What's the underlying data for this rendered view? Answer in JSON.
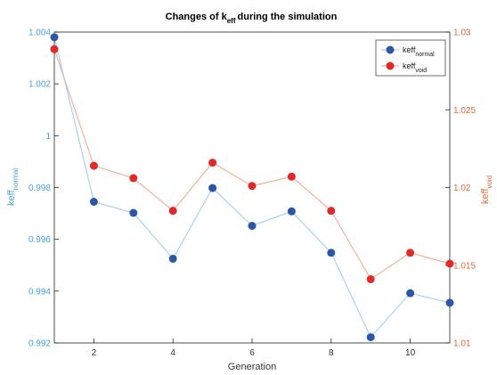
{
  "chart_data": {
    "type": "line",
    "title": "Changes of k",
    "title_sub": "eff",
    "title_rest": "during the simulation",
    "xlabel": "Generation",
    "xlim": [
      1,
      11
    ],
    "x_ticks": [
      2,
      4,
      6,
      8,
      10
    ],
    "grid": false,
    "legend_position": "top-right",
    "x": [
      1,
      2,
      3,
      4,
      5,
      6,
      7,
      8,
      9,
      10,
      11
    ],
    "left_axis": {
      "label": "keff",
      "label_sub": "normal",
      "ylim": [
        0.992,
        1.004
      ],
      "ticks": [
        "0.992",
        "0.994",
        "0.996",
        "0.998",
        "1",
        "1.002",
        "1.004"
      ],
      "color": "#4aa5dc"
    },
    "right_axis": {
      "label": "keff",
      "label_sub": "void",
      "ylim": [
        1.01,
        1.03
      ],
      "ticks": [
        "1.01",
        "1.015",
        "1.02",
        "1.025",
        "1.03"
      ],
      "color": "#e36a3b"
    },
    "series": [
      {
        "name": "keff",
        "name_sub": "normal",
        "axis": "left",
        "line_color": "#a8d2ef",
        "marker_color": "#2b57a7",
        "values": [
          1.0038,
          0.99745,
          0.99702,
          0.99525,
          0.99798,
          0.99652,
          0.99708,
          0.99548,
          0.99222,
          0.99392,
          0.99355
        ]
      },
      {
        "name": "keff",
        "name_sub": "void",
        "axis": "right",
        "line_color": "#f4b19a",
        "marker_color": "#e02a2a",
        "values": [
          1.0289,
          1.0214,
          1.0206,
          1.0185,
          1.0216,
          1.0201,
          1.0207,
          1.0185,
          1.0141,
          1.0158,
          1.0151
        ]
      }
    ]
  }
}
